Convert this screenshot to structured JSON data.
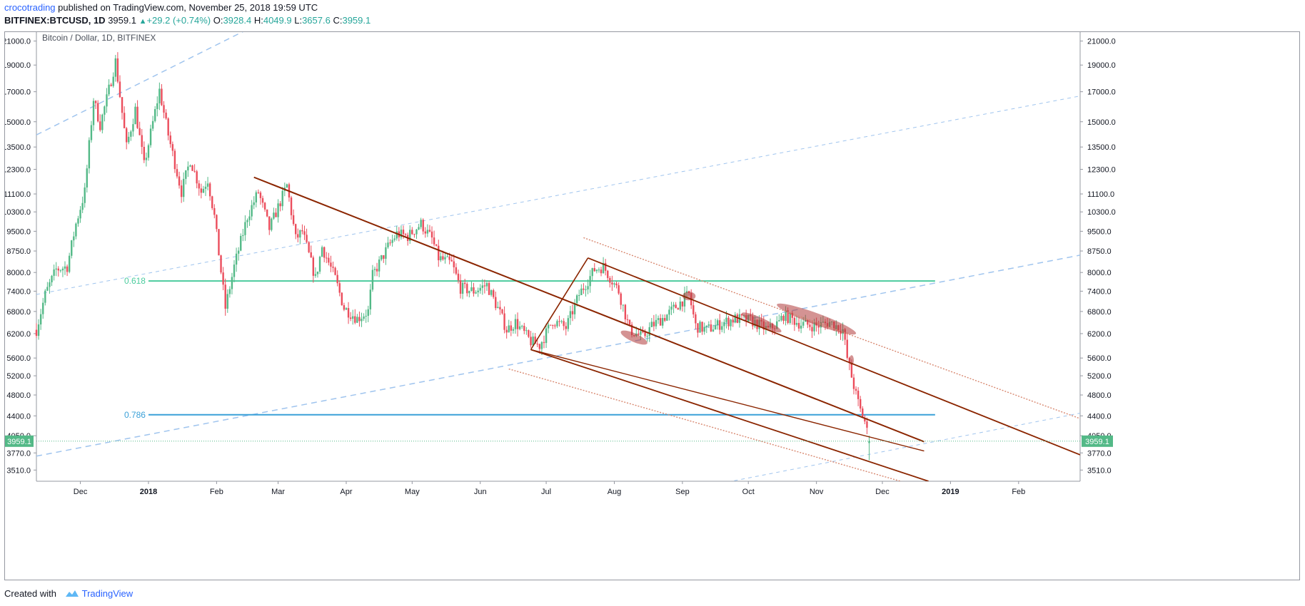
{
  "header": {
    "author": "crocotrading",
    "published_text": "published on TradingView.com, November 25, 2018 19:59 UTC",
    "ticker": "BITFINEX:BTCUSD, 1D",
    "last": "3959.1",
    "change": "+29.2 (+0.74%)",
    "o_label": "O:",
    "o_value": "3928.4",
    "h_label": "H:",
    "h_value": "4049.9",
    "l_label": "L:",
    "l_value": "3657.6",
    "c_label": "C:",
    "c_value": "3959.1"
  },
  "footer": {
    "created_with": "Created with",
    "brand": "TradingView"
  },
  "colors": {
    "up": "#53b987",
    "down": "#eb4d5c",
    "fib618": "#4ccc9e",
    "fib786": "#3aa0d8",
    "channel": "#8b2500",
    "channel_dotted": "#c0493a",
    "blue_dashed": "#9fc4ee",
    "highlight": "#b03a3a",
    "price_tag": "#53b987"
  },
  "chart_data": {
    "type": "candlestick",
    "title": "Bitcoin / Dollar, 1D, BITFINEX",
    "y_scale": "log",
    "ylim": [
      3350,
      21800
    ],
    "y_ticks": [
      "21000.0",
      "19000.0",
      "17000.0",
      "15000.0",
      "13500.0",
      "12300.0",
      "11100.0",
      "10300.0",
      "9500.0",
      "8750.0",
      "8000.0",
      "7400.0",
      "6800.0",
      "6200.0",
      "5600.0",
      "5200.0",
      "4800.0",
      "4400.0",
      "4050.0",
      "3770.0",
      "3510.0"
    ],
    "xlim": [
      "2017-11-11",
      "2019-03-01"
    ],
    "x_ticks": [
      {
        "date": "2017-12-01",
        "label": "Dec",
        "bold": false
      },
      {
        "date": "2018-01-01",
        "label": "2018",
        "bold": true
      },
      {
        "date": "2018-02-01",
        "label": "Feb",
        "bold": false
      },
      {
        "date": "2018-03-01",
        "label": "Mar",
        "bold": false
      },
      {
        "date": "2018-04-01",
        "label": "Apr",
        "bold": false
      },
      {
        "date": "2018-05-01",
        "label": "May",
        "bold": false
      },
      {
        "date": "2018-06-01",
        "label": "Jun",
        "bold": false
      },
      {
        "date": "2018-07-01",
        "label": "Jul",
        "bold": false
      },
      {
        "date": "2018-08-01",
        "label": "Aug",
        "bold": false
      },
      {
        "date": "2018-09-01",
        "label": "Sep",
        "bold": false
      },
      {
        "date": "2018-10-01",
        "label": "Oct",
        "bold": false
      },
      {
        "date": "2018-11-01",
        "label": "Nov",
        "bold": false
      },
      {
        "date": "2018-12-01",
        "label": "Dec",
        "bold": false
      },
      {
        "date": "2019-01-01",
        "label": "2019",
        "bold": true
      },
      {
        "date": "2019-02-01",
        "label": "Feb",
        "bold": false
      }
    ],
    "close_path": [
      [
        "2017-11-11",
        6300
      ],
      [
        "2017-11-15",
        7300
      ],
      [
        "2017-11-20",
        8100
      ],
      [
        "2017-11-25",
        8200
      ],
      [
        "2017-11-29",
        9800
      ],
      [
        "2017-12-03",
        11200
      ],
      [
        "2017-12-07",
        16500
      ],
      [
        "2017-12-10",
        14800
      ],
      [
        "2017-12-13",
        16500
      ],
      [
        "2017-12-17",
        19300
      ],
      [
        "2017-12-22",
        13500
      ],
      [
        "2017-12-26",
        15800
      ],
      [
        "2017-12-30",
        12500
      ],
      [
        "2018-01-06",
        17100
      ],
      [
        "2018-01-10",
        14200
      ],
      [
        "2018-01-16",
        11200
      ],
      [
        "2018-01-20",
        12800
      ],
      [
        "2018-01-25",
        11200
      ],
      [
        "2018-01-28",
        11800
      ],
      [
        "2018-01-31",
        10100
      ],
      [
        "2018-02-05",
        6900
      ],
      [
        "2018-02-09",
        8200
      ],
      [
        "2018-02-15",
        10100
      ],
      [
        "2018-02-20",
        11200
      ],
      [
        "2018-02-25",
        9600
      ],
      [
        "2018-03-05",
        11500
      ],
      [
        "2018-03-09",
        9200
      ],
      [
        "2018-03-12",
        9500
      ],
      [
        "2018-03-18",
        7800
      ],
      [
        "2018-03-21",
        8900
      ],
      [
        "2018-03-27",
        7800
      ],
      [
        "2018-03-31",
        6900
      ],
      [
        "2018-04-06",
        6600
      ],
      [
        "2018-04-11",
        6800
      ],
      [
        "2018-04-13",
        7900
      ],
      [
        "2018-04-20",
        8900
      ],
      [
        "2018-04-24",
        9400
      ],
      [
        "2018-04-29",
        9300
      ],
      [
        "2018-05-05",
        9800
      ],
      [
        "2018-05-10",
        9200
      ],
      [
        "2018-05-13",
        8500
      ],
      [
        "2018-05-19",
        8300
      ],
      [
        "2018-05-23",
        7500
      ],
      [
        "2018-05-29",
        7400
      ],
      [
        "2018-06-04",
        7600
      ],
      [
        "2018-06-10",
        6750
      ],
      [
        "2018-06-13",
        6300
      ],
      [
        "2018-06-17",
        6500
      ],
      [
        "2018-06-24",
        6000
      ],
      [
        "2018-06-28",
        5900
      ],
      [
        "2018-07-04",
        6550
      ],
      [
        "2018-07-10",
        6350
      ],
      [
        "2018-07-16",
        7300
      ],
      [
        "2018-07-23",
        8100
      ],
      [
        "2018-07-27",
        8200
      ],
      [
        "2018-08-03",
        7400
      ],
      [
        "2018-08-08",
        6300
      ],
      [
        "2018-08-14",
        6100
      ],
      [
        "2018-08-18",
        6400
      ],
      [
        "2018-08-25",
        6700
      ],
      [
        "2018-08-30",
        7000
      ],
      [
        "2018-09-04",
        7300
      ],
      [
        "2018-09-07",
        6400
      ],
      [
        "2018-09-12",
        6300
      ],
      [
        "2018-09-20",
        6500
      ],
      [
        "2018-09-25",
        6600
      ],
      [
        "2018-10-02",
        6550
      ],
      [
        "2018-10-10",
        6300
      ],
      [
        "2018-10-15",
        6500
      ],
      [
        "2018-10-17",
        6700
      ],
      [
        "2018-10-25",
        6450
      ],
      [
        "2018-11-01",
        6400
      ],
      [
        "2018-11-07",
        6500
      ],
      [
        "2018-11-13",
        6300
      ],
      [
        "2018-11-15",
        5600
      ],
      [
        "2018-11-19",
        4800
      ],
      [
        "2018-11-21",
        4500
      ],
      [
        "2018-11-23",
        4300
      ],
      [
        "2018-11-25",
        3959.1
      ]
    ],
    "fib_levels": [
      {
        "label": "0.618",
        "price": 7720,
        "start": "2018-01-01",
        "end": "2018-12-25"
      },
      {
        "label": "0.786",
        "price": 4420,
        "start": "2018-01-01",
        "end": "2018-12-25"
      }
    ],
    "last_price_tag": "3959.1"
  }
}
